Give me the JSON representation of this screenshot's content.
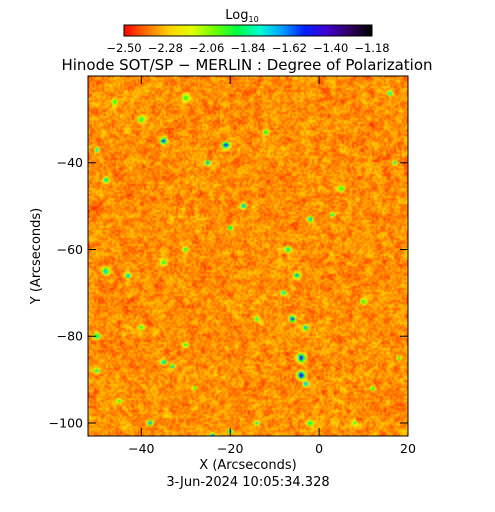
{
  "colorbar": {
    "label_main": "Log",
    "label_sub": "10",
    "colormap": [
      "#ff0000",
      "#ff7000",
      "#ffd000",
      "#e0ff00",
      "#70ff00",
      "#00ff40",
      "#00ffd0",
      "#00a0ff",
      "#0020ff",
      "#4000d0",
      "#300060",
      "#000000"
    ],
    "tick_values": [
      "-2.50",
      "-2.28",
      "-2.06",
      "-1.84",
      "-1.62",
      "-1.40",
      "-1.18"
    ],
    "range": [
      -2.5,
      -1.18
    ]
  },
  "title": "Hinode SOT/SP − MERLIN : Degree of Polarization",
  "x_axis": {
    "label": "X (Arcseconds)",
    "range": [
      -52,
      20
    ],
    "ticks": [
      {
        "value": -40,
        "label": "−40"
      },
      {
        "value": -20,
        "label": "−20"
      },
      {
        "value": 0,
        "label": "0"
      },
      {
        "value": 20,
        "label": "20"
      }
    ]
  },
  "y_axis": {
    "label": "Y (Arcseconds)",
    "range": [
      -103,
      -20
    ],
    "ticks": [
      {
        "value": -40,
        "label": "−40"
      },
      {
        "value": -60,
        "label": "−60"
      },
      {
        "value": -80,
        "label": "−80"
      },
      {
        "value": -100,
        "label": "−100"
      }
    ]
  },
  "image_map": {
    "background_level": -2.34,
    "patches": [
      [
        -35,
        -35,
        0.7,
        -1.3
      ],
      [
        -21,
        -36,
        0.8,
        -1.35
      ],
      [
        -25,
        -40,
        0.6,
        -1.45
      ],
      [
        -50,
        -37,
        0.5,
        -1.5
      ],
      [
        -48,
        -44,
        0.6,
        -1.6
      ],
      [
        -46,
        -26,
        0.7,
        -1.8
      ],
      [
        -30,
        -25,
        0.9,
        -1.85
      ],
      [
        -40,
        -30,
        0.8,
        -1.8
      ],
      [
        -12,
        -33,
        0.6,
        -1.75
      ],
      [
        16,
        -24,
        0.6,
        -1.55
      ],
      [
        17,
        -40,
        0.5,
        -1.65
      ],
      [
        5,
        -46,
        0.7,
        -1.8
      ],
      [
        -17,
        -50,
        0.6,
        -1.45
      ],
      [
        -2,
        -53,
        0.6,
        -1.45
      ],
      [
        3,
        -52,
        0.5,
        -1.7
      ],
      [
        -20,
        -55,
        0.5,
        -1.6
      ],
      [
        -30,
        -60,
        0.6,
        -1.8
      ],
      [
        -7,
        -60,
        0.7,
        -1.7
      ],
      [
        -48,
        -65,
        0.8,
        -1.6
      ],
      [
        -43,
        -66,
        0.6,
        -1.45
      ],
      [
        -35,
        -63,
        0.7,
        -1.8
      ],
      [
        -5,
        -66,
        0.7,
        -1.55
      ],
      [
        -8,
        -70,
        0.6,
        -1.6
      ],
      [
        -6,
        -76,
        0.7,
        -1.4
      ],
      [
        -3,
        -78,
        0.6,
        -1.5
      ],
      [
        -14,
        -76,
        0.6,
        -1.75
      ],
      [
        -50,
        -80,
        0.7,
        -1.6
      ],
      [
        -40,
        -78,
        0.6,
        -1.8
      ],
      [
        -30,
        -82,
        0.6,
        -1.8
      ],
      [
        -4,
        -85,
        0.9,
        -1.3
      ],
      [
        -4,
        -89,
        0.9,
        -1.25
      ],
      [
        -3,
        -91,
        0.6,
        -1.45
      ],
      [
        -35,
        -86,
        0.6,
        -1.45
      ],
      [
        -33,
        -87,
        0.5,
        -1.6
      ],
      [
        -50,
        -88,
        0.6,
        -1.65
      ],
      [
        -38,
        -100,
        0.6,
        -1.5
      ],
      [
        -24,
        -103,
        0.6,
        -1.4
      ],
      [
        -20,
        -102,
        0.5,
        -1.55
      ],
      [
        -14,
        -100,
        0.5,
        -1.6
      ],
      [
        -2,
        -100,
        0.7,
        -1.75
      ],
      [
        12,
        -92,
        0.6,
        -1.8
      ],
      [
        18,
        -85,
        0.5,
        -1.8
      ],
      [
        10,
        -72,
        0.7,
        -1.85
      ],
      [
        -28,
        -92,
        0.5,
        -1.8
      ],
      [
        -45,
        -95,
        0.6,
        -1.85
      ],
      [
        8,
        -100,
        0.6,
        -1.85
      ]
    ]
  },
  "timestamp": "3-Jun-2024  10:05:34.328"
}
